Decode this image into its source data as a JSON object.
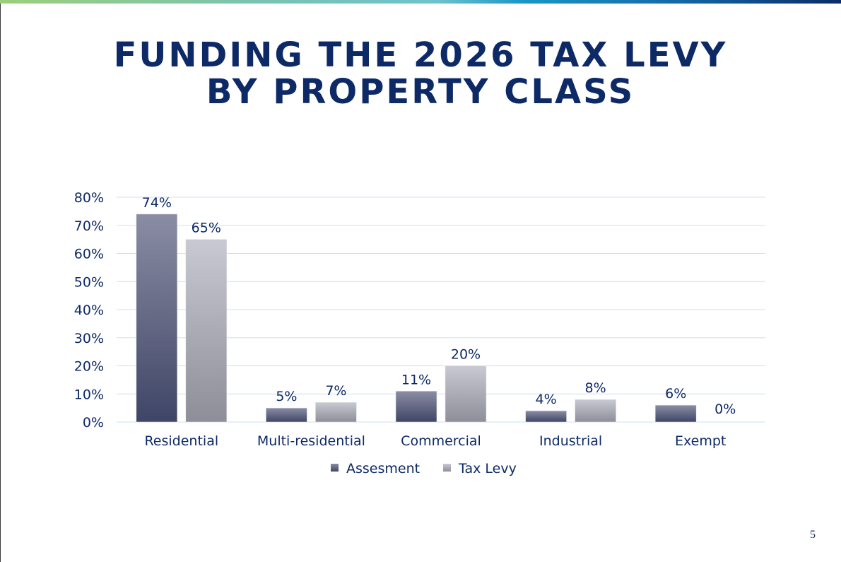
{
  "slide": {
    "title_line1": "FUNDING THE 2026 TAX LEVY",
    "title_line2": "BY PROPERTY CLASS",
    "page_number": "5"
  },
  "colors": {
    "title": "#0d2a66",
    "assessment_dark": "#3f4566",
    "assessment_light": "#8a8da4",
    "levy_light": "#c8c9d2",
    "levy_dark": "#8d8e97",
    "gridline": "#cfdff0",
    "text": "#0d2a66"
  },
  "chart_data": {
    "type": "bar",
    "categories": [
      "Residential",
      "Multi-residential",
      "Commercial",
      "Industrial",
      "Exempt"
    ],
    "series": [
      {
        "name": "Assesment",
        "values": [
          74,
          5,
          11,
          4,
          6
        ],
        "labels": [
          "74%",
          "5%",
          "11%",
          "4%",
          "6%"
        ]
      },
      {
        "name": "Tax Levy",
        "values": [
          65,
          7,
          20,
          8,
          0
        ],
        "labels": [
          "65%",
          "7%",
          "20%",
          "8%",
          "0%"
        ]
      }
    ],
    "ylim": [
      0,
      80
    ],
    "yticks": [
      "0%",
      "10%",
      "20%",
      "30%",
      "40%",
      "50%",
      "60%",
      "70%",
      "80%"
    ],
    "grid": true,
    "legend": "bottom"
  }
}
